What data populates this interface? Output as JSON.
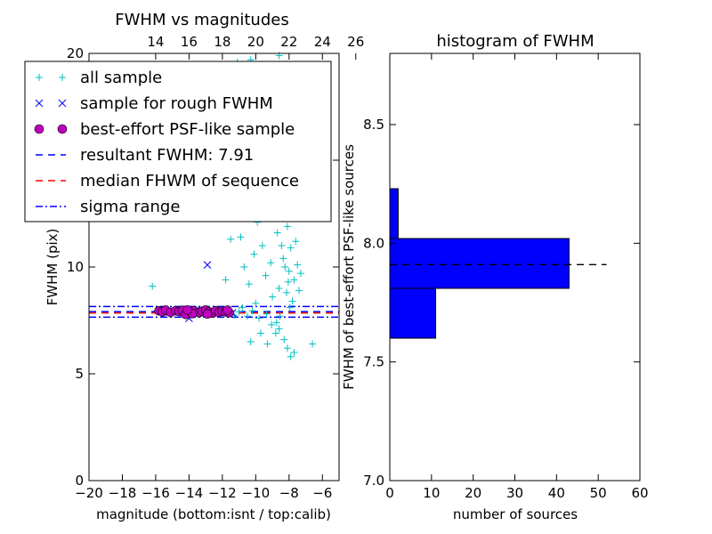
{
  "chart_data": [
    {
      "type": "scatter",
      "title": "FWHM vs magnitudes",
      "xlabel": "magnitude (bottom:isnt / top:calib)",
      "ylabel": "FWHM (pix)",
      "xlim": [
        -20,
        -5
      ],
      "ylim": [
        0,
        20
      ],
      "x_ticks": [
        -20,
        -18,
        -16,
        -14,
        -12,
        -10,
        -8,
        -6
      ],
      "x_tick_labels": [
        "−20",
        "−18",
        "−16",
        "−14",
        "−12",
        "−10",
        "−8",
        "−6"
      ],
      "y_ticks": [
        0,
        5,
        10,
        15,
        20
      ],
      "y_tick_labels": [
        "0",
        "5",
        "10",
        "15",
        "20"
      ],
      "top_axis": {
        "ticks": [
          14,
          16,
          18,
          20,
          22,
          24,
          26
        ],
        "tick_labels": [
          "14",
          "16",
          "18",
          "20",
          "22",
          "24",
          "26"
        ],
        "offset": 30
      },
      "legend_position": "upper-left",
      "legend": [
        {
          "label": "all sample",
          "marker": "plus",
          "color": "#00bfbf"
        },
        {
          "label": "sample for rough FWHM",
          "marker": "x",
          "color": "#0000ff"
        },
        {
          "label": "best-effort PSF-like sample",
          "marker": "circle",
          "color": "#bf00bf"
        },
        {
          "label": "resultant FWHM: 7.91",
          "linestyle": "dashed",
          "color": "#0000ff"
        },
        {
          "label": "median FHWM of sequence",
          "linestyle": "dashed",
          "color": "#ff0000"
        },
        {
          "label": "sigma range",
          "linestyle": "dashdot",
          "color": "#0000ff"
        }
      ],
      "hlines": {
        "resultant": 7.91,
        "median": 7.85,
        "sigma_low": 7.65,
        "sigma_high": 8.15
      },
      "series": [
        {
          "name": "all sample",
          "points": [
            [
              -16.2,
              9.1
            ],
            [
              -15.8,
              7.95
            ],
            [
              -15.6,
              7.9
            ],
            [
              -15.5,
              8.0
            ],
            [
              -15.3,
              7.85
            ],
            [
              -14.9,
              7.95
            ],
            [
              -14.6,
              7.9
            ],
            [
              -14.3,
              7.85
            ],
            [
              -14.0,
              8.0
            ],
            [
              -13.7,
              7.9
            ],
            [
              -13.5,
              7.95
            ],
            [
              -13.2,
              7.85
            ],
            [
              -13.0,
              7.9
            ],
            [
              -12.8,
              8.0
            ],
            [
              -12.5,
              7.8
            ],
            [
              -12.2,
              7.9
            ],
            [
              -11.9,
              8.05
            ],
            [
              -11.6,
              7.85
            ],
            [
              -11.3,
              7.75
            ],
            [
              -11.0,
              7.9
            ],
            [
              -10.8,
              8.1
            ],
            [
              -10.5,
              7.7
            ],
            [
              -10.2,
              7.95
            ],
            [
              -10.0,
              8.3
            ],
            [
              -9.8,
              7.6
            ],
            [
              -11.8,
              9.4
            ],
            [
              -11.5,
              11.3
            ],
            [
              -11.2,
              12.3
            ],
            [
              -10.9,
              11.4
            ],
            [
              -10.7,
              10.0
            ],
            [
              -10.4,
              9.2
            ],
            [
              -10.1,
              10.6
            ],
            [
              -9.9,
              12.1
            ],
            [
              -9.6,
              11.0
            ],
            [
              -9.4,
              9.6
            ],
            [
              -9.2,
              13.4
            ],
            [
              -9.1,
              10.2
            ],
            [
              -9.0,
              8.6
            ],
            [
              -8.9,
              12.8
            ],
            [
              -8.8,
              15.6
            ],
            [
              -8.7,
              11.6
            ],
            [
              -8.6,
              9.0
            ],
            [
              -8.5,
              13.9
            ],
            [
              -8.4,
              16.8
            ],
            [
              -8.35,
              10.4
            ],
            [
              -8.3,
              12.4
            ],
            [
              -8.2,
              14.6
            ],
            [
              -8.15,
              8.8
            ],
            [
              -8.1,
              11.9
            ],
            [
              -8.05,
              17.5
            ],
            [
              -8.0,
              9.8
            ],
            [
              -7.95,
              13.2
            ],
            [
              -7.9,
              10.9
            ],
            [
              -7.85,
              15.1
            ],
            [
              -7.8,
              8.4
            ],
            [
              -7.75,
              12.6
            ],
            [
              -7.7,
              9.4
            ],
            [
              -7.6,
              11.2
            ],
            [
              -7.5,
              10.1
            ],
            [
              -7.4,
              8.9
            ],
            [
              -7.3,
              9.7
            ],
            [
              -8.6,
              7.1
            ],
            [
              -8.3,
              6.6
            ],
            [
              -8.1,
              6.2
            ],
            [
              -7.9,
              5.8
            ],
            [
              -7.7,
              6.0
            ],
            [
              -8.8,
              6.9
            ],
            [
              -9.3,
              6.4
            ],
            [
              -10.3,
              6.5
            ],
            [
              -9.7,
              6.9
            ],
            [
              -6.6,
              6.4
            ],
            [
              -9.0,
              18.8
            ],
            [
              -8.6,
              19.9
            ],
            [
              -8.2,
              19.5
            ],
            [
              -7.8,
              19.1
            ],
            [
              -9.6,
              19.2
            ],
            [
              -10.3,
              19.7
            ],
            [
              -11.1,
              19.6
            ],
            [
              -8.0,
              16.6
            ],
            [
              -8.7,
              17.8
            ],
            [
              -9.1,
              15.9
            ],
            [
              -9.5,
              14.8
            ],
            [
              -8.45,
              11.0
            ],
            [
              -8.25,
              10.0
            ],
            [
              -8.05,
              9.3
            ],
            [
              -7.95,
              8.1
            ],
            [
              -8.55,
              7.7
            ],
            [
              -8.75,
              7.4
            ],
            [
              -9.05,
              7.3
            ],
            [
              -9.35,
              7.8
            ]
          ]
        },
        {
          "name": "sample for rough FWHM",
          "points": [
            [
              -12.9,
              10.1
            ],
            [
              -14.0,
              7.6
            ],
            [
              -15.6,
              7.95
            ],
            [
              -15.2,
              7.9
            ],
            [
              -14.4,
              7.85
            ],
            [
              -13.6,
              7.95
            ],
            [
              -13.1,
              7.9
            ],
            [
              -12.6,
              7.85
            ],
            [
              -12.2,
              7.95
            ],
            [
              -11.8,
              7.9
            ],
            [
              -11.4,
              7.85
            ]
          ]
        },
        {
          "name": "best-effort PSF-like sample",
          "points": [
            [
              -15.8,
              7.95
            ],
            [
              -15.6,
              7.9
            ],
            [
              -15.4,
              7.98
            ],
            [
              -15.1,
              7.88
            ],
            [
              -14.8,
              7.95
            ],
            [
              -14.6,
              7.92
            ],
            [
              -14.4,
              7.97
            ],
            [
              -14.2,
              7.78
            ],
            [
              -13.9,
              7.9
            ],
            [
              -13.7,
              7.95
            ],
            [
              -13.4,
              7.86
            ],
            [
              -13.2,
              7.93
            ],
            [
              -13.0,
              7.98
            ],
            [
              -12.8,
              7.9
            ],
            [
              -12.6,
              7.84
            ],
            [
              -12.4,
              7.95
            ],
            [
              -12.2,
              7.88
            ],
            [
              -12.0,
              7.93
            ],
            [
              -11.8,
              7.9
            ],
            [
              -11.6,
              7.86
            ],
            [
              -13.8,
              7.82
            ],
            [
              -14.1,
              7.99
            ],
            [
              -12.9,
              7.8
            ],
            [
              -11.7,
              7.98
            ]
          ]
        }
      ]
    },
    {
      "type": "bar",
      "orientation": "horizontal",
      "title": "histogram of FWHM",
      "xlabel": "number of sources",
      "ylabel": "FWHM of best-effort PSF-like sources",
      "xlim": [
        0,
        60
      ],
      "ylim": [
        7.0,
        8.8
      ],
      "x_ticks": [
        0,
        10,
        20,
        30,
        40,
        50,
        60
      ],
      "x_tick_labels": [
        "0",
        "10",
        "20",
        "30",
        "40",
        "50",
        "60"
      ],
      "y_ticks": [
        7.0,
        7.5,
        8.0,
        8.5
      ],
      "y_tick_labels": [
        "7.0",
        "7.5",
        "8.0",
        "8.5"
      ],
      "bar_color": "#0000ff",
      "bins": [
        {
          "y0": 7.6,
          "y1": 7.81,
          "count": 11
        },
        {
          "y0": 7.81,
          "y1": 8.02,
          "count": 43
        },
        {
          "y0": 8.02,
          "y1": 8.23,
          "count": 2
        }
      ],
      "hline": 7.91
    }
  ]
}
